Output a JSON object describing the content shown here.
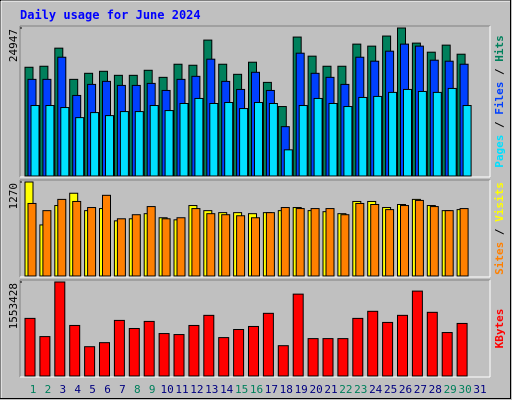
{
  "chart_data": [
    {
      "type": "bar",
      "title": "Daily usage for June 2024",
      "legend_separator": " / ",
      "ylim": [
        0,
        24947
      ],
      "yticks": [
        24947
      ],
      "series": [
        {
          "name": "Hits",
          "color": "#00805c",
          "values": [
            18330,
            18500,
            21550,
            16290,
            17310,
            17650,
            16970,
            16970,
            17820,
            16630,
            18840,
            18670,
            22910,
            18840,
            17140,
            19180,
            15780,
            11710,
            23420,
            20200,
            18500,
            18500,
            22230,
            21890,
            23590,
            24947,
            22400,
            20870,
            22060,
            20530,
            null
          ]
        },
        {
          "name": "Files",
          "color": "#0040ff",
          "values": [
            16290,
            16290,
            20020,
            13580,
            15440,
            15950,
            15270,
            15270,
            15610,
            14420,
            16290,
            16800,
            19690,
            15950,
            14590,
            17480,
            14420,
            8320,
            20700,
            17310,
            16630,
            15440,
            20020,
            19350,
            21040,
            22230,
            21890,
            19520,
            19350,
            18840,
            null
          ]
        },
        {
          "name": "Pages",
          "color": "#00e0ff",
          "values": [
            11880,
            11880,
            11540,
            9840,
            10690,
            10180,
            10860,
            10860,
            11880,
            11030,
            12220,
            13070,
            12220,
            12390,
            11370,
            12390,
            12220,
            4410,
            11880,
            13070,
            12220,
            11710,
            13240,
            13410,
            14090,
            14590,
            14250,
            14090,
            14760,
            11880,
            null
          ]
        }
      ]
    },
    {
      "type": "bar",
      "legend_separator": " / ",
      "ylim": [
        0,
        1270
      ],
      "yticks": [
        1270
      ],
      "series": [
        {
          "name": "Visits",
          "color": "#ffff00",
          "values": [
            1270,
            690,
            952,
            1118,
            883,
            911,
            745,
            773,
            842,
            787,
            759,
            952,
            883,
            856,
            856,
            842,
            856,
            883,
            925,
            883,
            869,
            842,
            1007,
            1007,
            925,
            966,
            1035,
            952,
            883,
            897,
            null
          ]
        },
        {
          "name": "Sites",
          "color": "#ff8000",
          "values": [
            980,
            883,
            1035,
            1007,
            925,
            1090,
            773,
            828,
            938,
            773,
            787,
            911,
            842,
            828,
            814,
            787,
            856,
            925,
            911,
            911,
            911,
            828,
            980,
            966,
            897,
            952,
            1021,
            938,
            883,
            911,
            null
          ]
        }
      ]
    },
    {
      "type": "bar",
      "ylim": [
        0,
        1553428
      ],
      "yticks": [
        1553428
      ],
      "categories": [
        "1",
        "2",
        "3",
        "4",
        "5",
        "6",
        "7",
        "8",
        "9",
        "10",
        "11",
        "12",
        "13",
        "14",
        "15",
        "16",
        "17",
        "18",
        "19",
        "20",
        "21",
        "22",
        "23",
        "24",
        "25",
        "26",
        "27",
        "28",
        "29",
        "30",
        "31"
      ],
      "category_colors": [
        "#00805c",
        "#00805c",
        "#000080",
        "#000080",
        "#000080",
        "#000080",
        "#000080",
        "#00805c",
        "#00805c",
        "#000080",
        "#000080",
        "#000080",
        "#000080",
        "#000080",
        "#00805c",
        "#00805c",
        "#000080",
        "#000080",
        "#000080",
        "#000080",
        "#000080",
        "#00805c",
        "#00805c",
        "#000080",
        "#000080",
        "#000080",
        "#000080",
        "#000080",
        "#00805c",
        "#00805c",
        "#000080"
      ],
      "series": [
        {
          "name": "KBytes",
          "color": "#ff0000",
          "values": [
            952130,
            651460,
            1553428,
            835200,
            484420,
            551230,
            918720,
            785090,
            902020,
            701570,
            684860,
            835200,
            1002240,
            634750,
            768380,
            818500,
            1035650,
            501120,
            1353020,
            618050,
            618050,
            618050,
            952130,
            1069060,
            885310,
            1002240,
            1403140,
            1052350,
            718270,
            868610,
            null
          ]
        }
      ]
    }
  ]
}
